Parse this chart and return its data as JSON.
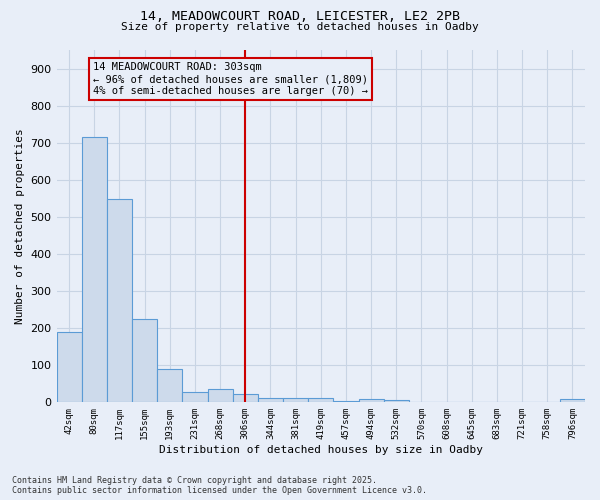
{
  "title_line1": "14, MEADOWCOURT ROAD, LEICESTER, LE2 2PB",
  "title_line2": "Size of property relative to detached houses in Oadby",
  "xlabel": "Distribution of detached houses by size in Oadby",
  "ylabel": "Number of detached properties",
  "footnote": "Contains HM Land Registry data © Crown copyright and database right 2025.\nContains public sector information licensed under the Open Government Licence v3.0.",
  "bar_labels": [
    "42sqm",
    "80sqm",
    "117sqm",
    "155sqm",
    "193sqm",
    "231sqm",
    "268sqm",
    "306sqm",
    "344sqm",
    "381sqm",
    "419sqm",
    "457sqm",
    "494sqm",
    "532sqm",
    "570sqm",
    "608sqm",
    "645sqm",
    "683sqm",
    "721sqm",
    "758sqm",
    "796sqm"
  ],
  "bar_values": [
    190,
    715,
    548,
    225,
    90,
    27,
    37,
    23,
    13,
    11,
    12,
    3,
    10,
    7,
    0,
    0,
    0,
    0,
    0,
    0,
    10
  ],
  "bar_color": "#cddaeb",
  "bar_edge_color": "#5b9bd5",
  "grid_color": "#c8d4e4",
  "bg_color": "#e8eef8",
  "vline_x": 7,
  "vline_color": "#cc0000",
  "annotation_text": "14 MEADOWCOURT ROAD: 303sqm\n← 96% of detached houses are smaller (1,809)\n4% of semi-detached houses are larger (70) →",
  "annotation_box_color": "#cc0000",
  "ylim": [
    0,
    950
  ],
  "yticks": [
    0,
    100,
    200,
    300,
    400,
    500,
    600,
    700,
    800,
    900
  ]
}
